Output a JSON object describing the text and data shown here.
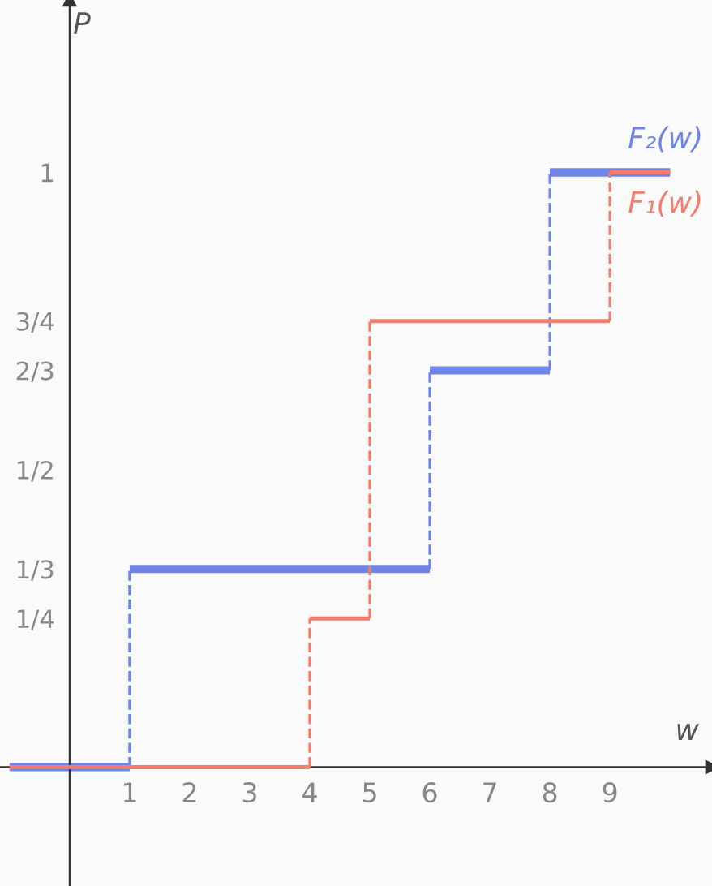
{
  "chart_data": {
    "type": "step",
    "xlabel": "w",
    "ylabel": "P",
    "series": [
      {
        "name": "F₂(w)",
        "color": "#6f86e8",
        "x": [
          -1,
          1,
          6,
          8,
          10
        ],
        "values": [
          0,
          0.333,
          0.667,
          1,
          1
        ]
      },
      {
        "name": "F₁(w)",
        "color": "#f47c6c",
        "x": [
          -1,
          4,
          5,
          9,
          10
        ],
        "values": [
          0,
          0.25,
          0.75,
          1,
          1
        ]
      }
    ],
    "xlim": [
      -1.16,
      10.7
    ],
    "ylim": [
      -0.2,
      1.29
    ],
    "xticks": [
      1,
      2,
      3,
      4,
      5,
      6,
      7,
      8,
      9
    ],
    "yticks": [
      {
        "value": 0.25,
        "label": "1/4"
      },
      {
        "value": 0.333,
        "label": "1/3"
      },
      {
        "value": 0.5,
        "label": "1/2"
      },
      {
        "value": 0.667,
        "label": "2/3"
      },
      {
        "value": 0.75,
        "label": "3/4"
      },
      1
    ],
    "grid": false,
    "legend": false,
    "line_style": "solid"
  }
}
